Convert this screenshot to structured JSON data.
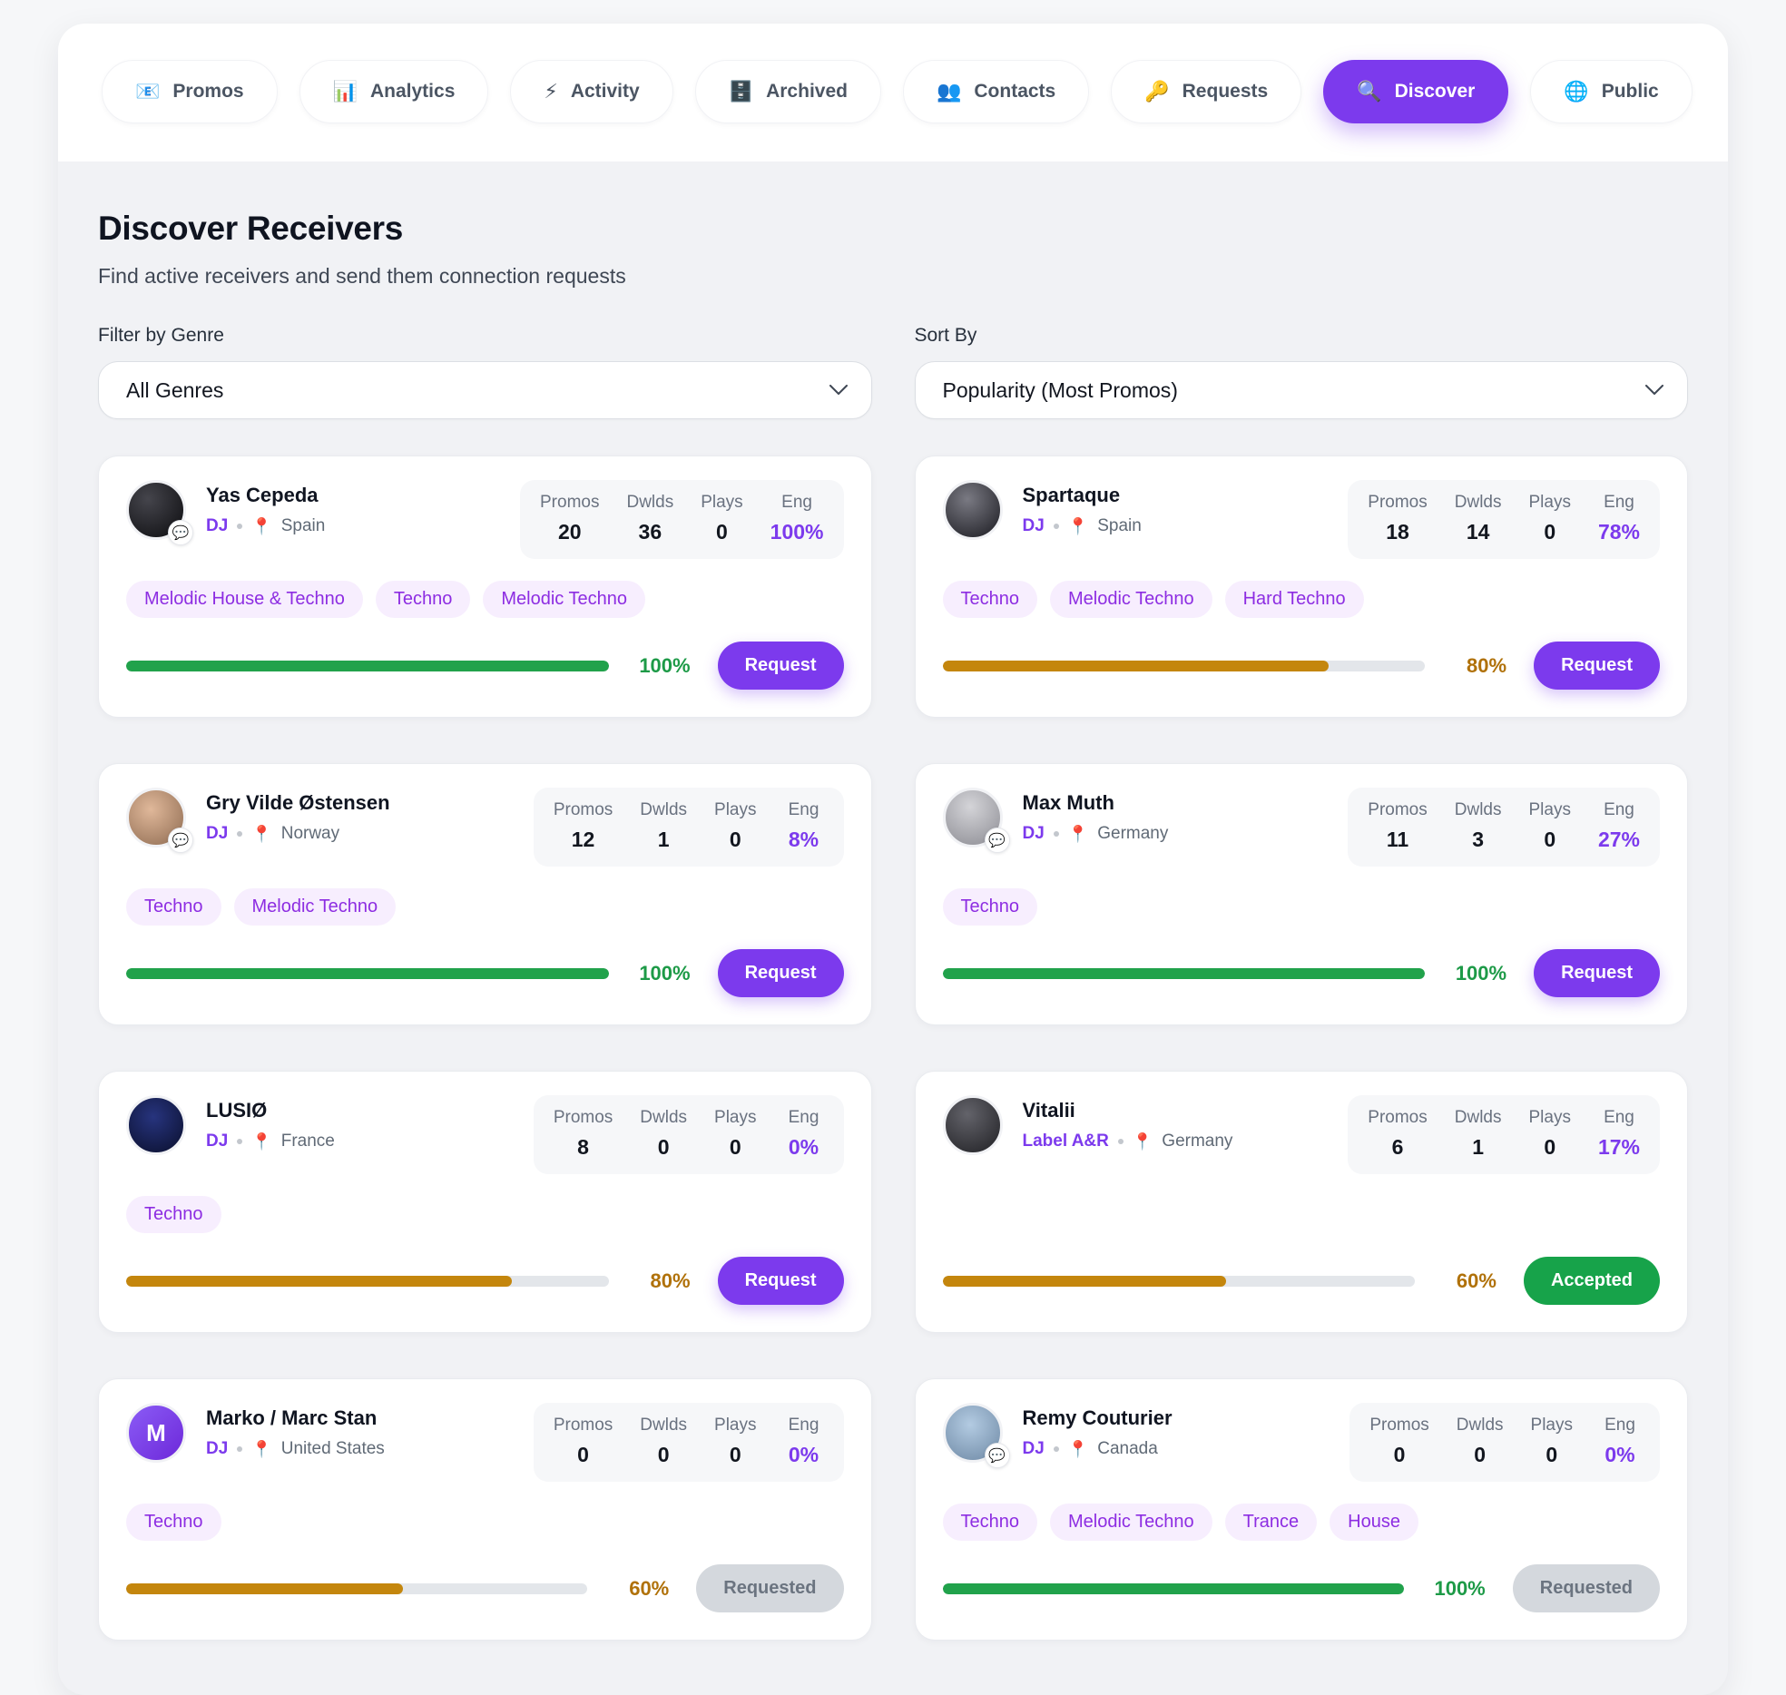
{
  "tabs": [
    {
      "label": "Promos",
      "icon": "📧",
      "icon_name": "mail-icon",
      "active": false
    },
    {
      "label": "Analytics",
      "icon": "📊",
      "icon_name": "bar-chart-icon",
      "active": false
    },
    {
      "label": "Activity",
      "icon": "⚡",
      "icon_name": "lightning-icon",
      "active": false
    },
    {
      "label": "Archived",
      "icon": "🗄️",
      "icon_name": "file-cabinet-icon",
      "active": false
    },
    {
      "label": "Contacts",
      "icon": "👥",
      "icon_name": "people-icon",
      "active": false
    },
    {
      "label": "Requests",
      "icon": "🔑",
      "icon_name": "key-icon",
      "active": false
    },
    {
      "label": "Discover",
      "icon": "🔍",
      "icon_name": "magnifier-icon",
      "active": true
    },
    {
      "label": "Public",
      "icon": "🌐",
      "icon_name": "globe-icon",
      "active": false
    }
  ],
  "page": {
    "title": "Discover Receivers",
    "subtitle": "Find active receivers and send them connection requests"
  },
  "filters": {
    "genre_label": "Filter by Genre",
    "genre_value": "All Genres",
    "sort_label": "Sort By",
    "sort_value": "Popularity (Most Promos)"
  },
  "stats_headers": [
    "Promos",
    "Dwlds",
    "Plays",
    "Eng"
  ],
  "colors": {
    "accent_purple": "#7c3aed",
    "progress_green": "#21a24b",
    "progress_amber": "#c4860d",
    "accepted_green": "#17a34a"
  },
  "receivers": [
    {
      "name": "Yas Cepeda",
      "role": "DJ",
      "country": "Spain",
      "promos": "20",
      "dwlds": "36",
      "plays": "0",
      "eng": "100%",
      "genres": [
        "Melodic House & Techno",
        "Techno",
        "Melodic Techno"
      ],
      "match_pct": "100%",
      "match_value": 100,
      "bar_color": "green",
      "action": {
        "label": "Request",
        "type": "request"
      },
      "has_chat_badge": true,
      "avatar": {
        "kind": "photo",
        "initial": "",
        "bg": "radial-gradient(circle at 35% 30%, #45454c, #0c0c0f)"
      }
    },
    {
      "name": "Spartaque",
      "role": "DJ",
      "country": "Spain",
      "promos": "18",
      "dwlds": "14",
      "plays": "0",
      "eng": "78%",
      "genres": [
        "Techno",
        "Melodic Techno",
        "Hard Techno"
      ],
      "match_pct": "80%",
      "match_value": 80,
      "bar_color": "amber",
      "action": {
        "label": "Request",
        "type": "request"
      },
      "has_chat_badge": false,
      "avatar": {
        "kind": "photo",
        "initial": "",
        "bg": "radial-gradient(circle at 40% 30%, #7a7a83, #1a1a20)"
      }
    },
    {
      "name": "Gry Vilde Østensen",
      "role": "DJ",
      "country": "Norway",
      "promos": "12",
      "dwlds": "1",
      "plays": "0",
      "eng": "8%",
      "genres": [
        "Techno",
        "Melodic Techno"
      ],
      "match_pct": "100%",
      "match_value": 100,
      "bar_color": "green",
      "action": {
        "label": "Request",
        "type": "request"
      },
      "has_chat_badge": true,
      "avatar": {
        "kind": "photo",
        "initial": "",
        "bg": "radial-gradient(circle at 40% 35%, #e0b89a, #8d6a50)"
      }
    },
    {
      "name": "Max Muth",
      "role": "DJ",
      "country": "Germany",
      "promos": "11",
      "dwlds": "3",
      "plays": "0",
      "eng": "27%",
      "genres": [
        "Techno"
      ],
      "match_pct": "100%",
      "match_value": 100,
      "bar_color": "green",
      "action": {
        "label": "Request",
        "type": "request"
      },
      "has_chat_badge": true,
      "avatar": {
        "kind": "photo",
        "initial": "",
        "bg": "radial-gradient(circle at 45% 30%, #d4d4d8, #8c8c93)"
      }
    },
    {
      "name": "LUSIØ",
      "role": "DJ",
      "country": "France",
      "promos": "8",
      "dwlds": "0",
      "plays": "0",
      "eng": "0%",
      "genres": [
        "Techno"
      ],
      "match_pct": "80%",
      "match_value": 80,
      "bar_color": "amber",
      "action": {
        "label": "Request",
        "type": "request"
      },
      "has_chat_badge": false,
      "avatar": {
        "kind": "photo",
        "initial": "",
        "bg": "radial-gradient(circle at 45% 35%, #27347e, #0a0f2c)"
      }
    },
    {
      "name": "Vitalii",
      "role": "Label A&R",
      "country": "Germany",
      "promos": "6",
      "dwlds": "1",
      "plays": "0",
      "eng": "17%",
      "genres": [],
      "match_pct": "60%",
      "match_value": 60,
      "bar_color": "amber",
      "action": {
        "label": "Accepted",
        "type": "accepted"
      },
      "has_chat_badge": false,
      "avatar": {
        "kind": "photo",
        "initial": "",
        "bg": "radial-gradient(circle at 40% 30%, #63636a, #202024)"
      }
    },
    {
      "name": "Marko / Marc Stan",
      "role": "DJ",
      "country": "United States",
      "promos": "0",
      "dwlds": "0",
      "plays": "0",
      "eng": "0%",
      "genres": [
        "Techno"
      ],
      "match_pct": "60%",
      "match_value": 60,
      "bar_color": "amber",
      "action": {
        "label": "Requested",
        "type": "requested"
      },
      "has_chat_badge": false,
      "avatar": {
        "kind": "initial",
        "initial": "M",
        "bg": "linear-gradient(135deg, #8b5cf6, #6d28d9)"
      }
    },
    {
      "name": "Remy Couturier",
      "role": "DJ",
      "country": "Canada",
      "promos": "0",
      "dwlds": "0",
      "plays": "0",
      "eng": "0%",
      "genres": [
        "Techno",
        "Melodic Techno",
        "Trance",
        "House"
      ],
      "match_pct": "100%",
      "match_value": 100,
      "bar_color": "green",
      "action": {
        "label": "Requested",
        "type": "requested"
      },
      "has_chat_badge": true,
      "avatar": {
        "kind": "photo",
        "initial": "",
        "bg": "radial-gradient(circle at 45% 35%, #b3cbe2, #6d88a4)"
      }
    }
  ],
  "icons": {
    "pin": "📍",
    "chat_badge": "💬"
  }
}
